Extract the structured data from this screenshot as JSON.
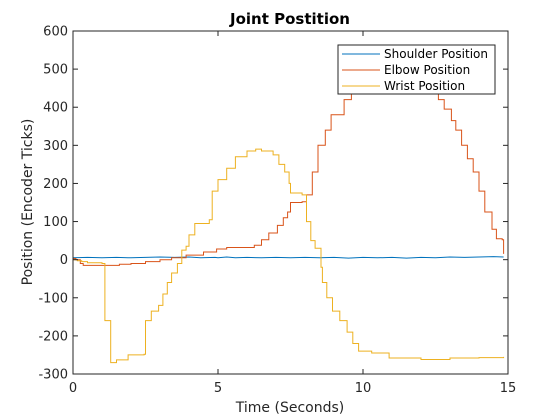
{
  "chart_data": {
    "type": "line",
    "title": "Joint Postition",
    "xlabel": "Time (Seconds)",
    "ylabel": "Position (Encoder Ticks)",
    "xlim": [
      0,
      15
    ],
    "ylim": [
      -300,
      600
    ],
    "xticks": [
      0,
      5,
      10,
      15
    ],
    "yticks": [
      -300,
      -200,
      -100,
      0,
      100,
      200,
      300,
      400,
      500,
      600
    ],
    "grid": false,
    "legend_position": "top-right",
    "series": [
      {
        "name": "Shoulder Position",
        "color": "#0072BD",
        "step": false,
        "points": [
          [
            0.0,
            5
          ],
          [
            0.5,
            6
          ],
          [
            1.0,
            5
          ],
          [
            1.5,
            6
          ],
          [
            2.0,
            5
          ],
          [
            2.5,
            6
          ],
          [
            3.0,
            7
          ],
          [
            3.5,
            6
          ],
          [
            4.0,
            7
          ],
          [
            4.4,
            5
          ],
          [
            4.9,
            6
          ],
          [
            5.0,
            5
          ],
          [
            5.3,
            7
          ],
          [
            5.6,
            5
          ],
          [
            6.0,
            6
          ],
          [
            6.5,
            5
          ],
          [
            7.0,
            6
          ],
          [
            7.5,
            5
          ],
          [
            8.0,
            6
          ],
          [
            8.5,
            5
          ],
          [
            9.0,
            6
          ],
          [
            9.5,
            4
          ],
          [
            10.0,
            6
          ],
          [
            10.5,
            5
          ],
          [
            11.0,
            6
          ],
          [
            11.5,
            4
          ],
          [
            12.0,
            6
          ],
          [
            12.5,
            5
          ],
          [
            13.0,
            7
          ],
          [
            13.5,
            6
          ],
          [
            14.0,
            7
          ],
          [
            14.5,
            8
          ],
          [
            14.85,
            7
          ]
        ]
      },
      {
        "name": "Elbow Position",
        "color": "#D95319",
        "step": true,
        "points": [
          [
            0.0,
            3
          ],
          [
            0.1,
            0
          ],
          [
            0.25,
            -10
          ],
          [
            0.35,
            -15
          ],
          [
            1.6,
            -12
          ],
          [
            2.0,
            -10
          ],
          [
            2.5,
            -5
          ],
          [
            3.0,
            0
          ],
          [
            3.4,
            5
          ],
          [
            3.9,
            12
          ],
          [
            4.5,
            20
          ],
          [
            4.95,
            28
          ],
          [
            5.3,
            32
          ],
          [
            6.25,
            38
          ],
          [
            6.5,
            52
          ],
          [
            6.75,
            70
          ],
          [
            7.05,
            90
          ],
          [
            7.25,
            110
          ],
          [
            7.4,
            125
          ],
          [
            7.5,
            150
          ],
          [
            7.9,
            152
          ],
          [
            8.05,
            170
          ],
          [
            8.25,
            230
          ],
          [
            8.45,
            300
          ],
          [
            8.7,
            340
          ],
          [
            8.9,
            380
          ],
          [
            9.35,
            420
          ],
          [
            9.6,
            450
          ],
          [
            10.4,
            470
          ],
          [
            10.5,
            500
          ],
          [
            12.3,
            485
          ],
          [
            12.45,
            460
          ],
          [
            12.6,
            420
          ],
          [
            12.8,
            395
          ],
          [
            13.05,
            365
          ],
          [
            13.2,
            340
          ],
          [
            13.4,
            300
          ],
          [
            13.6,
            265
          ],
          [
            13.8,
            230
          ],
          [
            14.0,
            180
          ],
          [
            14.2,
            125
          ],
          [
            14.45,
            80
          ],
          [
            14.6,
            55
          ],
          [
            14.8,
            52
          ],
          [
            14.85,
            15
          ]
        ]
      },
      {
        "name": "Wrist Position",
        "color": "#EDB120",
        "step": true,
        "points": [
          [
            0.0,
            0
          ],
          [
            0.15,
            -3
          ],
          [
            0.3,
            -5
          ],
          [
            0.5,
            -8
          ],
          [
            1.0,
            -10
          ],
          [
            1.1,
            -160
          ],
          [
            1.3,
            -270
          ],
          [
            1.5,
            -263
          ],
          [
            1.9,
            -250
          ],
          [
            2.45,
            -248
          ],
          [
            2.5,
            -160
          ],
          [
            2.7,
            -135
          ],
          [
            2.95,
            -120
          ],
          [
            3.1,
            -90
          ],
          [
            3.25,
            -60
          ],
          [
            3.4,
            -35
          ],
          [
            3.6,
            -10
          ],
          [
            3.75,
            25
          ],
          [
            3.9,
            35
          ],
          [
            4.0,
            65
          ],
          [
            4.2,
            95
          ],
          [
            4.7,
            105
          ],
          [
            4.8,
            180
          ],
          [
            5.0,
            210
          ],
          [
            5.3,
            240
          ],
          [
            5.6,
            270
          ],
          [
            6.0,
            285
          ],
          [
            6.3,
            290
          ],
          [
            6.5,
            285
          ],
          [
            6.9,
            275
          ],
          [
            7.1,
            250
          ],
          [
            7.3,
            230
          ],
          [
            7.45,
            200
          ],
          [
            7.5,
            175
          ],
          [
            7.9,
            170
          ],
          [
            8.05,
            100
          ],
          [
            8.2,
            50
          ],
          [
            8.35,
            30
          ],
          [
            8.55,
            -20
          ],
          [
            8.6,
            -60
          ],
          [
            8.75,
            -100
          ],
          [
            8.95,
            -135
          ],
          [
            9.2,
            -160
          ],
          [
            9.45,
            -190
          ],
          [
            9.65,
            -220
          ],
          [
            9.85,
            -240
          ],
          [
            10.3,
            -245
          ],
          [
            10.9,
            -258
          ],
          [
            12.0,
            -262
          ],
          [
            13.0,
            -258
          ],
          [
            14.0,
            -257
          ],
          [
            14.85,
            -255
          ]
        ]
      }
    ]
  }
}
